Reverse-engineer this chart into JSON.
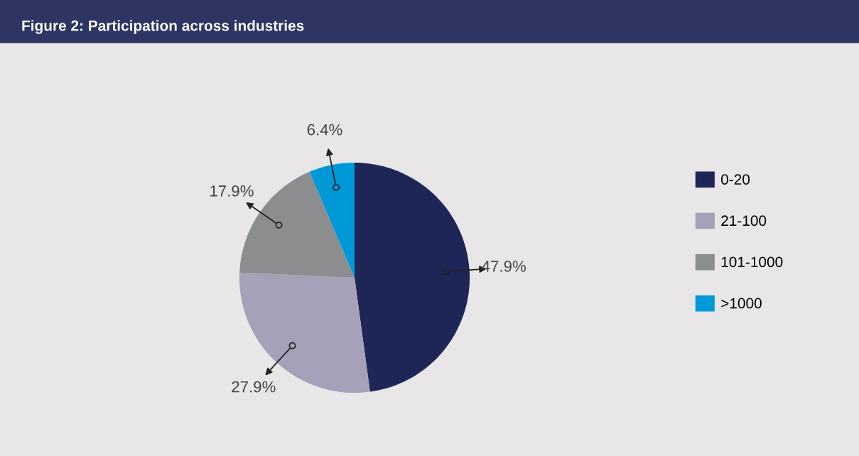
{
  "chart_data": {
    "type": "pie",
    "title": "Figure 2: Participation across industries",
    "categories": [
      "0-20",
      "21-100",
      "101-1000",
      ">1000"
    ],
    "values": [
      47.9,
      27.9,
      17.9,
      6.4
    ],
    "colors": [
      "#1e2657",
      "#a5a1b8",
      "#8c8d8e",
      "#0099d8"
    ],
    "value_labels": [
      "47.9%",
      "27.9%",
      "17.9%",
      "6.4%"
    ],
    "legend": "right"
  }
}
